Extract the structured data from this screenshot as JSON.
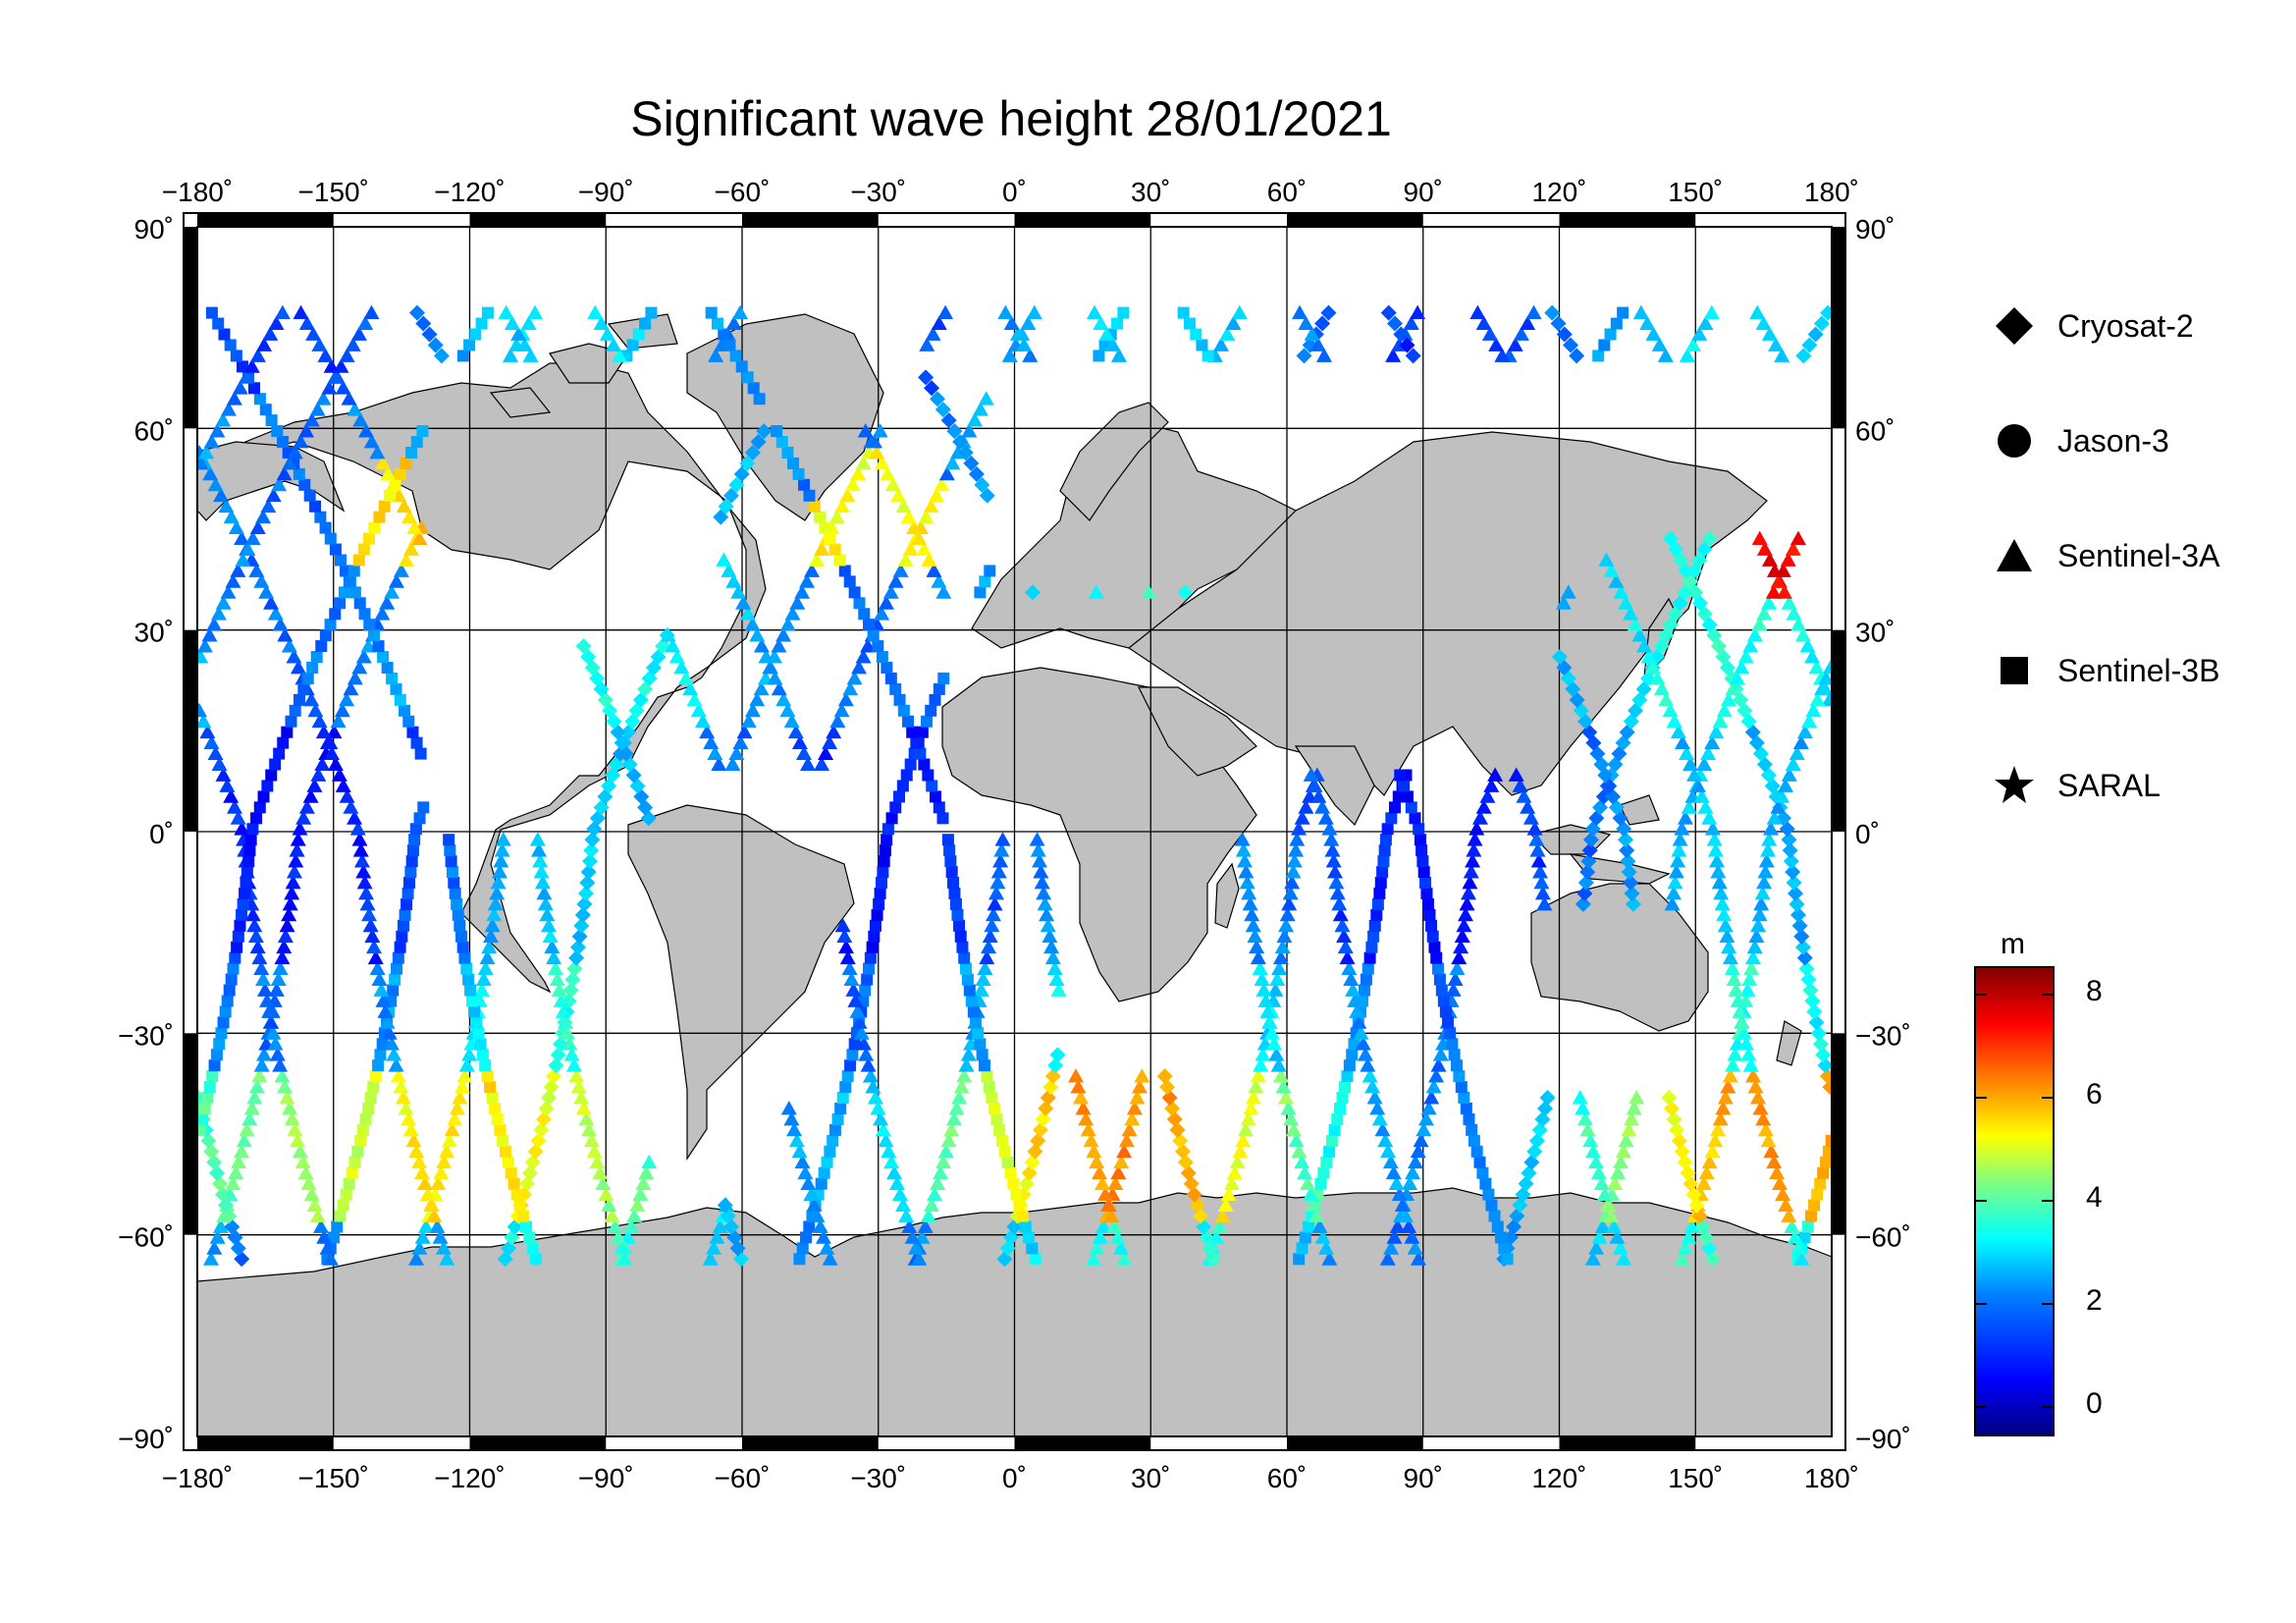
{
  "title": "Significant wave height 28/01/2021",
  "x_ticks": [
    "−180˚",
    "−150˚",
    "−120˚",
    "−90˚",
    "−60˚",
    "−30˚",
    "0˚",
    "30˚",
    "60˚",
    "90˚",
    "120˚",
    "150˚",
    "180˚"
  ],
  "y_ticks": [
    "90˚",
    "60˚",
    "30˚",
    "0˚",
    "−30˚",
    "−60˚",
    "−90˚"
  ],
  "legend": [
    {
      "label": "Cryosat-2",
      "icon": "diamond-icon"
    },
    {
      "label": "Jason-3",
      "icon": "circle-icon"
    },
    {
      "label": "Sentinel-3A",
      "icon": "triangle-icon"
    },
    {
      "label": "Sentinel-3B",
      "icon": "square-icon"
    },
    {
      "label": "SARAL",
      "icon": "star-icon"
    }
  ],
  "colorbar": {
    "unit": "m",
    "ticks": [
      "8",
      "6",
      "4",
      "2",
      "0"
    ],
    "range": [
      -0.5,
      8.6
    ],
    "colors": [
      "#00007f",
      "#0000ff",
      "#007fff",
      "#00ffff",
      "#7fff7f",
      "#ffff00",
      "#ff7f00",
      "#ff0000",
      "#7f0000"
    ]
  },
  "colors": {
    "land": "#c0c0c0",
    "ocean": "#ffffff",
    "frame": "#000000"
  }
}
